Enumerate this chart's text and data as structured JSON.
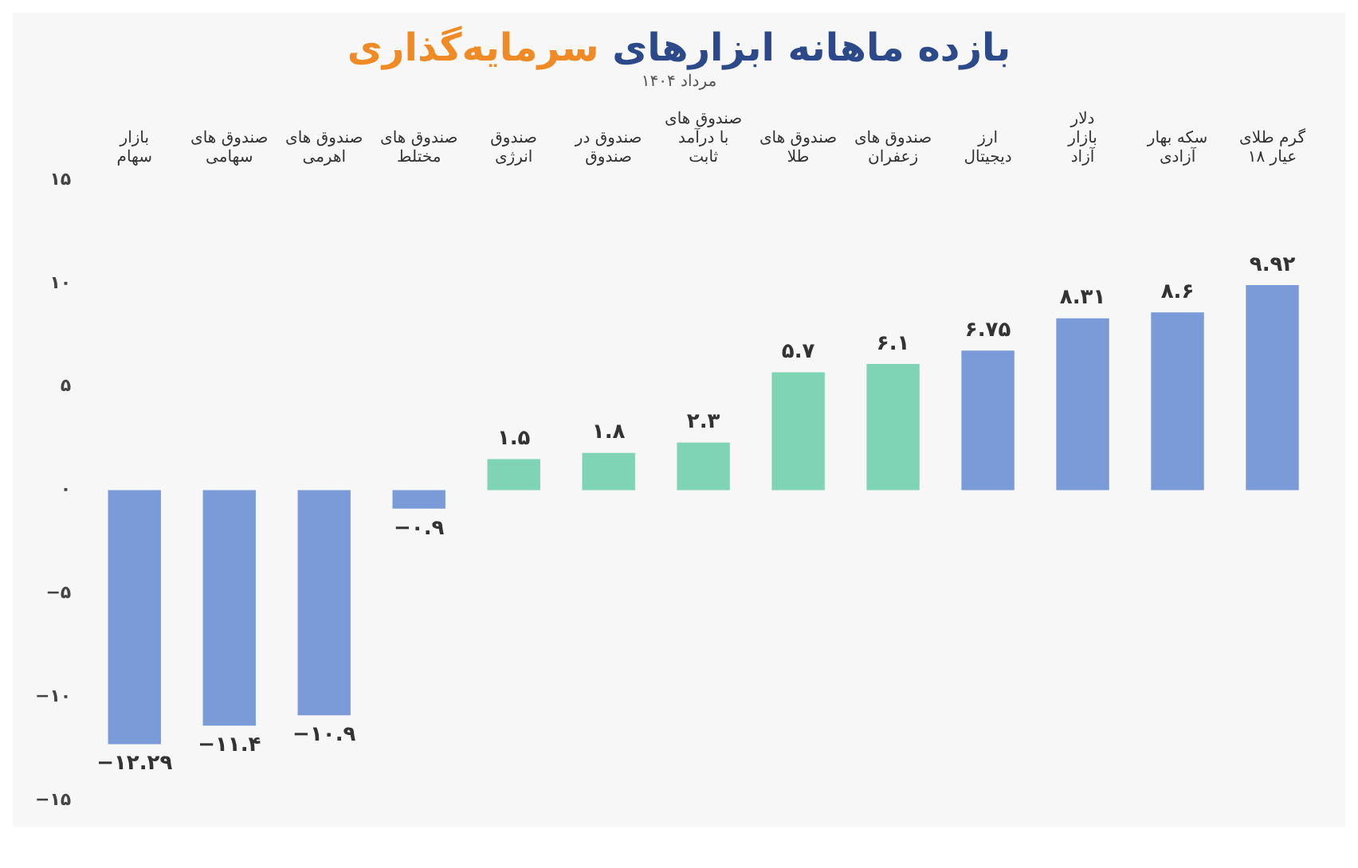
{
  "chart_data": {
    "type": "bar",
    "title": "بازده ماهانه ابزارهای سرمایه‌گذاری",
    "subtitle": "مرداد ۱۴۰۴",
    "categories": [
      "بازار سهام",
      "صندوق های سهامی",
      "صندوق های اهرمی",
      "صندوق های مختلط",
      "صندوق انرژی",
      "صندوق در صندوق",
      "صندوق های با درآمد ثابت",
      "صندوق های طلا",
      "صندوق های زعفران",
      "ارز دیجیتال",
      "دلار بازار آزاد",
      "سکه بهار آزادی",
      "گرم طلای ۱۸ عیار"
    ],
    "values": [
      -12.29,
      -11.4,
      -10.9,
      -0.9,
      1.5,
      1.8,
      2.3,
      5.7,
      6.1,
      6.75,
      8.31,
      8.6,
      9.92
    ],
    "value_labels": [
      "−۱۲.۲۹",
      "−۱۱.۴",
      "−۱۰.۹",
      "−۰.۹",
      "۱.۵",
      "۱.۸",
      "۲.۳",
      "۵.۷",
      "۶.۱",
      "۶.۷۵",
      "۸.۳۱",
      "۸.۶",
      "۹.۹۲"
    ],
    "colors": [
      "#7b9bd8",
      "#7b9bd8",
      "#7b9bd8",
      "#7b9bd8",
      "#7fd4b5",
      "#7fd4b5",
      "#7fd4b5",
      "#7fd4b5",
      "#7fd4b5",
      "#7b9bd8",
      "#7b9bd8",
      "#7b9bd8",
      "#7b9bd8"
    ],
    "ylim": [
      -15,
      15
    ],
    "yticks": [
      {
        "value": 15,
        "label": "۱۵"
      },
      {
        "value": 10,
        "label": "۱۰"
      },
      {
        "value": 5,
        "label": "۵"
      },
      {
        "value": 0,
        "label": "۰"
      },
      {
        "value": -5,
        "label": "−۵"
      },
      {
        "value": -10,
        "label": "−۱۰"
      },
      {
        "value": -15,
        "label": "−۱۵"
      }
    ],
    "grid": false,
    "legend": false
  }
}
